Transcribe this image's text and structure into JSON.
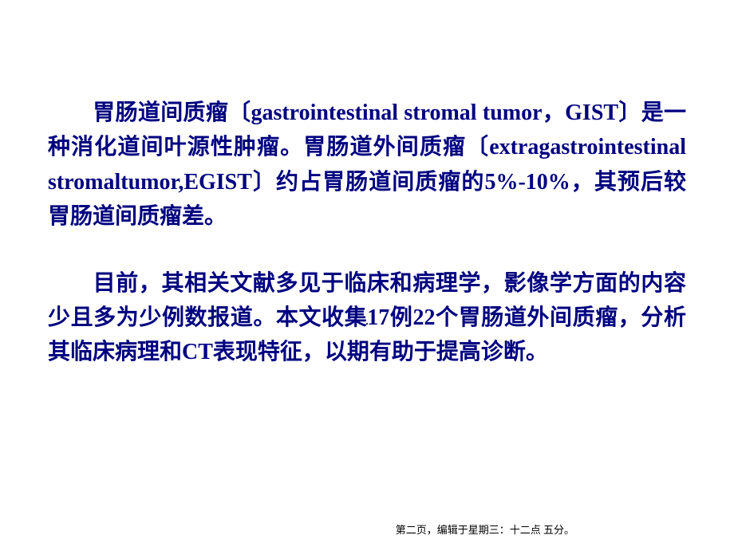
{
  "slide": {
    "paragraph1": "胃肠道间质瘤〔gastrointestinal stromal tumor，GIST〕是一种消化道间叶源性肿瘤。胃肠道外间质瘤〔extragastrointestinal stromaltumor,EGIST〕约占胃肠道间质瘤的5%-10%，其预后较胃肠道间质瘤差。",
    "paragraph2": "目前，其相关文献多见于临床和病理学，影像学方面的内容少且多为少例数报道。本文收集17例22个胃肠道外间质瘤，分析其临床病理和CT表现特征，以期有助于提高诊断。",
    "center_mark": "·",
    "footer": "第二页，编辑于星期三：十二点 五分。"
  },
  "styling": {
    "text_color": "#000080",
    "background_color": "#ffffff",
    "font_size_pt": 21,
    "font_weight": "bold",
    "footer_color": "#000000",
    "footer_font_size_pt": 10
  }
}
